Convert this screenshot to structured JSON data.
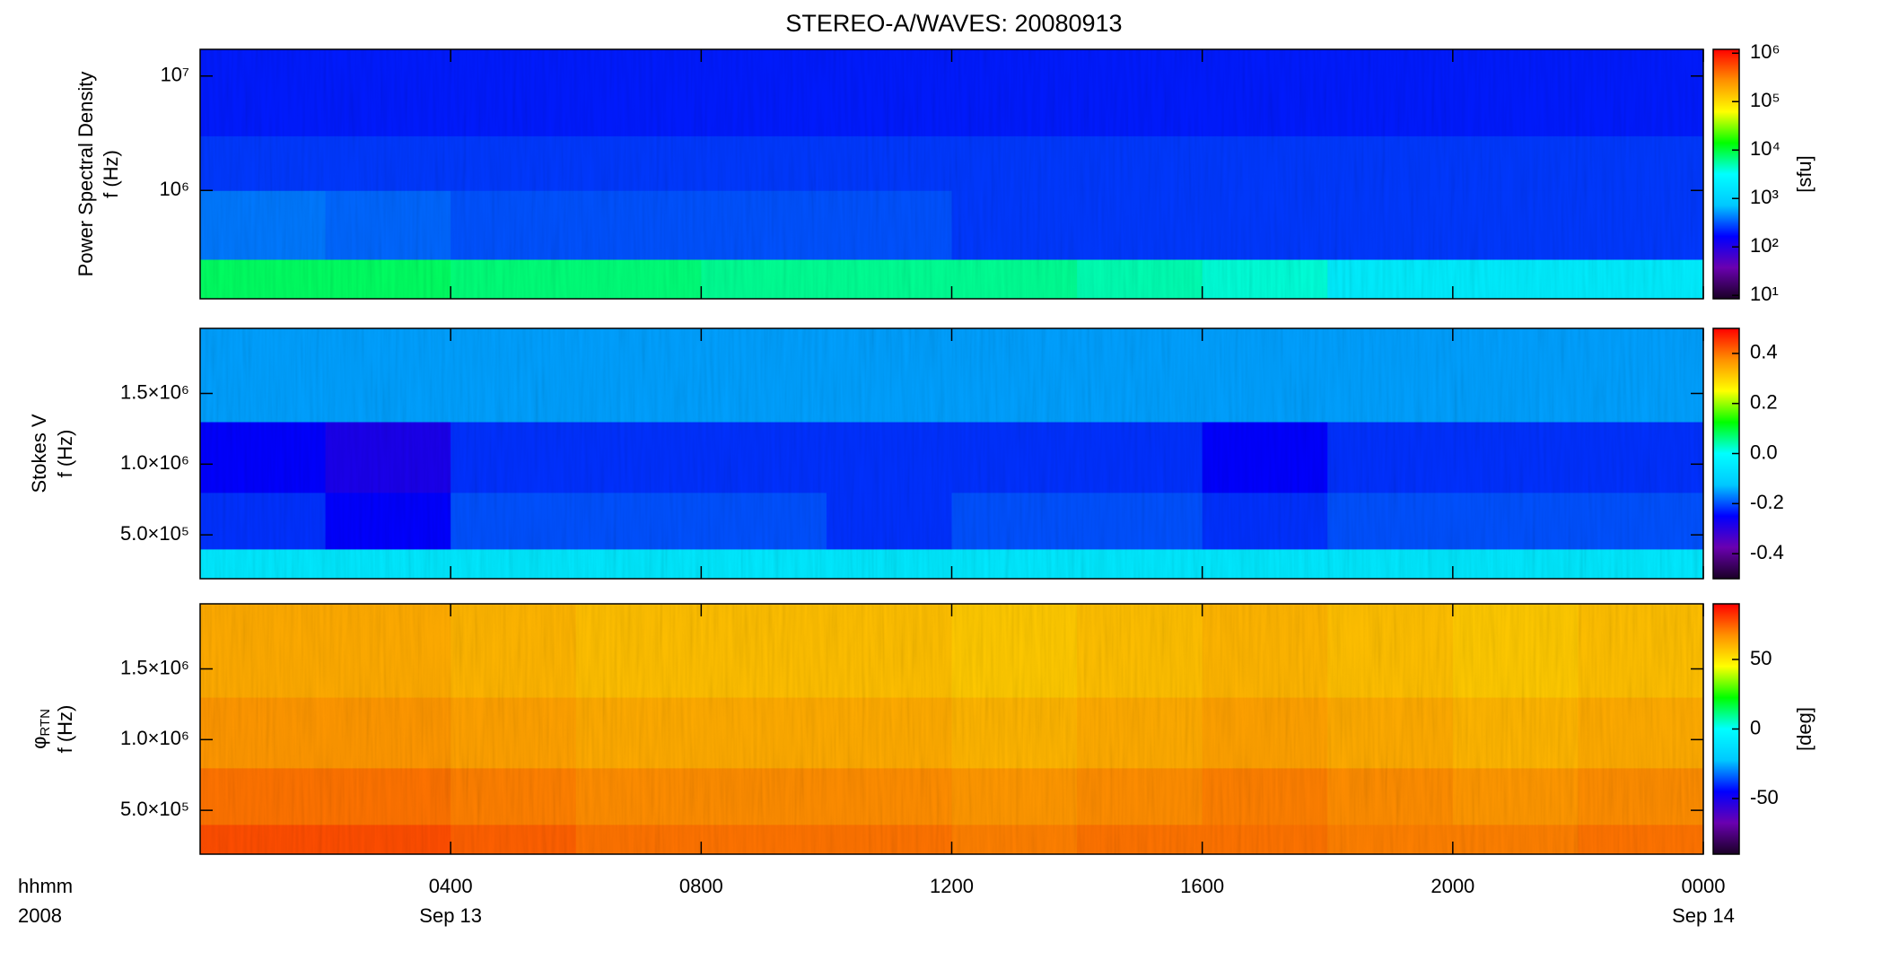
{
  "chart_data": [
    {
      "type": "heatmap",
      "title": "STEREO-A/WAVES: 20080913",
      "ylabel": [
        "Power Spectral Density",
        "f (Hz)"
      ],
      "xlim": [
        0,
        24
      ],
      "ylog": true,
      "ylim": [
        113000,
        17100000
      ],
      "yticks": [
        {
          "value": 1000000,
          "label": "10⁶"
        },
        {
          "value": 10000000,
          "label": "10⁷"
        }
      ],
      "x_edges": [
        0,
        2,
        4,
        6,
        8,
        10,
        12,
        14,
        16,
        18,
        20,
        22,
        24
      ],
      "y_edges": [
        113000,
        250000,
        1000000,
        3000000,
        17100000
      ],
      "z": [
        [
          8000,
          8000,
          7000,
          7000,
          6000,
          6000,
          6000,
          5000,
          4000,
          2000,
          2000,
          2000
        ],
        [
          400,
          350,
          300,
          300,
          300,
          300,
          250,
          250,
          250,
          250,
          250,
          250
        ],
        [
          250,
          250,
          250,
          250,
          250,
          250,
          250,
          250,
          250,
          250,
          250,
          250
        ],
        [
          200,
          200,
          200,
          200,
          200,
          200,
          200,
          200,
          200,
          200,
          200,
          200
        ]
      ],
      "zlog": true,
      "zlim": [
        8.5,
        1200000
      ],
      "zticks": [
        {
          "value": 10,
          "label": "10¹"
        },
        {
          "value": 100,
          "label": "10²"
        },
        {
          "value": 1000,
          "label": "10³"
        },
        {
          "value": 10000,
          "label": "10⁴"
        },
        {
          "value": 100000,
          "label": "10⁵"
        },
        {
          "value": 1000000,
          "label": "10⁶"
        }
      ],
      "zlabel": "[sfu]",
      "colormap": [
        "#1a0026",
        "#6a00b0",
        "#0000ff",
        "#00c8ff",
        "#00ffff",
        "#00ff00",
        "#ffff00",
        "#ff9000",
        "#ff0000"
      ]
    },
    {
      "type": "heatmap",
      "ylabel": [
        "Stokes V",
        "f (Hz)"
      ],
      "xlim": [
        0,
        24
      ],
      "ylog": false,
      "ylim": [
        190000,
        1960000
      ],
      "yticks": [
        {
          "value": 500000,
          "label": "5.0×10⁵"
        },
        {
          "value": 1000000,
          "label": "1.0×10⁶"
        },
        {
          "value": 1500000,
          "label": "1.5×10⁶"
        }
      ],
      "x_edges": [
        0,
        2,
        4,
        6,
        8,
        10,
        12,
        14,
        16,
        18,
        20,
        22,
        24
      ],
      "y_edges": [
        190000,
        400000,
        800000,
        1300000,
        1960000
      ],
      "z": [
        [
          -0.05,
          -0.05,
          -0.05,
          -0.05,
          -0.05,
          -0.05,
          -0.05,
          -0.05,
          -0.05,
          -0.05,
          -0.05,
          -0.05
        ],
        [
          -0.22,
          -0.25,
          -0.2,
          -0.2,
          -0.2,
          -0.22,
          -0.2,
          -0.2,
          -0.22,
          -0.2,
          -0.2,
          -0.2
        ],
        [
          -0.25,
          -0.28,
          -0.22,
          -0.22,
          -0.22,
          -0.22,
          -0.22,
          -0.22,
          -0.25,
          -0.22,
          -0.22,
          -0.22
        ],
        [
          -0.15,
          -0.15,
          -0.15,
          -0.15,
          -0.15,
          -0.15,
          -0.15,
          -0.15,
          -0.15,
          -0.15,
          -0.15,
          -0.15
        ]
      ],
      "zlog": false,
      "zlim": [
        -0.5,
        0.5
      ],
      "zticks": [
        -0.4,
        -0.2,
        {
          "value": 0,
          "label": "0.0"
        },
        0.2,
        0.4
      ],
      "colormap": [
        "#1a0026",
        "#6a00b0",
        "#0000ff",
        "#00c8ff",
        "#00ffff",
        "#00ff00",
        "#ffff00",
        "#ff9000",
        "#ff0000"
      ]
    },
    {
      "type": "heatmap",
      "ylabel": [
        {
          "text": "φ",
          "sub": "RTN"
        },
        "f (Hz)"
      ],
      "xlim": [
        0,
        24
      ],
      "ylog": false,
      "ylim": [
        190000,
        1960000
      ],
      "yticks": [
        {
          "value": 500000,
          "label": "5.0×10⁵"
        },
        {
          "value": 1000000,
          "label": "1.0×10⁶"
        },
        {
          "value": 1500000,
          "label": "1.5×10⁶"
        }
      ],
      "x_edges": [
        0,
        2,
        4,
        6,
        8,
        10,
        12,
        14,
        16,
        18,
        20,
        22,
        24
      ],
      "y_edges": [
        190000,
        400000,
        800000,
        1300000,
        1960000
      ],
      "z": [
        [
          78,
          78,
          75,
          72,
          72,
          72,
          70,
          72,
          72,
          70,
          70,
          72
        ],
        [
          72,
          72,
          70,
          68,
          68,
          68,
          66,
          68,
          70,
          68,
          66,
          68
        ],
        [
          66,
          66,
          64,
          62,
          62,
          62,
          60,
          62,
          64,
          62,
          60,
          62
        ],
        [
          62,
          62,
          60,
          58,
          58,
          58,
          56,
          58,
          60,
          58,
          56,
          58
        ]
      ],
      "zlog": false,
      "zlim": [
        -90,
        90
      ],
      "zticks": [
        -50,
        0,
        50
      ],
      "zlabel": "[deg]",
      "colormap": [
        "#1a0026",
        "#6a00b0",
        "#0000ff",
        "#00c8ff",
        "#00ffff",
        "#00ff00",
        "#ffff00",
        "#ff9000",
        "#ff0000"
      ],
      "xlabel": [
        "hhmm",
        "2008"
      ],
      "xticks": [
        {
          "value": 4,
          "label": "0400"
        },
        {
          "value": 8,
          "label": "0800"
        },
        {
          "value": 12,
          "label": "1200"
        },
        {
          "value": 16,
          "label": "1600"
        },
        {
          "value": 20,
          "label": "2000"
        },
        {
          "value": 24,
          "label": "0000"
        }
      ],
      "xdates": [
        {
          "value": 4,
          "label": "Sep 13"
        },
        {
          "value": 24,
          "label": "Sep 14"
        }
      ]
    }
  ]
}
